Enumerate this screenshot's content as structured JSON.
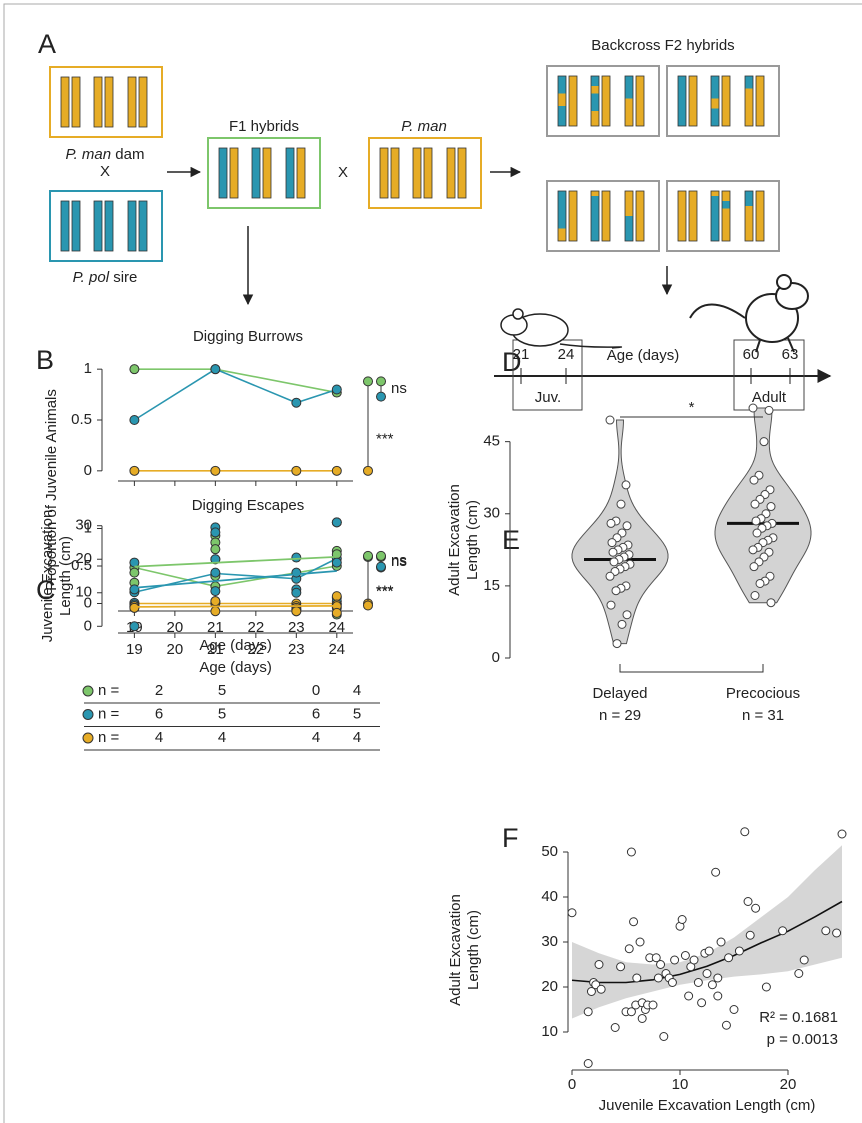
{
  "panel_labels": [
    "A",
    "B",
    "C",
    "D",
    "E",
    "F"
  ],
  "diagram": {
    "dam": {
      "species": "P. man",
      "role": "dam"
    },
    "cross_1": "X",
    "sire": {
      "species": "P. pol",
      "role": "sire"
    },
    "f1": "F1 hybrids",
    "cross_2": "X",
    "backcross_parent": "P. man",
    "f2": "Backcross F2 hybrids"
  },
  "timeline": {
    "ticks": [
      "21",
      "24",
      "60",
      "63"
    ],
    "label": "Age (days)",
    "stages": [
      "Juv.",
      "Adult"
    ]
  },
  "chart_data": [
    {
      "type": "line",
      "title": "Digging Burrows",
      "ylabel": "Proportion of Juvenile Animals",
      "xlim": [
        18.2,
        24.4
      ],
      "ylim": [
        -0.1,
        1.1
      ],
      "yticks": [
        0,
        0.5,
        1
      ],
      "series": [
        {
          "color": "#7dc66b",
          "x": [
            19,
            21,
            24
          ],
          "values": [
            1,
            1,
            0.77
          ],
          "summary": 0.88
        },
        {
          "color": "#2a96b0",
          "x": [
            19,
            21,
            23,
            24
          ],
          "values": [
            0.5,
            1,
            0.67,
            0.8
          ],
          "summary": 0.73
        },
        {
          "color": "#e6ac26",
          "x": [
            19,
            21,
            23,
            24
          ],
          "values": [
            0,
            0,
            0,
            0
          ],
          "summary": 0
        }
      ],
      "annotations": [
        "ns",
        "***"
      ]
    },
    {
      "type": "line",
      "title": "Digging Escapes",
      "xlabel": "Age (days)",
      "xlim": [
        18.2,
        24.4
      ],
      "ylim": [
        -0.1,
        1.1
      ],
      "xticks": [
        19,
        20,
        21,
        22,
        23,
        24
      ],
      "yticks": [
        0,
        0.5,
        1
      ],
      "series": [
        {
          "color": "#7dc66b",
          "x": [
            19,
            21,
            24
          ],
          "values": [
            0.48,
            0.23,
            0.5
          ],
          "summary": 0.62
        },
        {
          "color": "#2a96b0",
          "x": [
            19,
            21,
            23,
            24
          ],
          "values": [
            0.15,
            0.4,
            0.33,
            0.6
          ],
          "summary": 0.48
        },
        {
          "color": "#e6ac26",
          "x": [
            19,
            21,
            23,
            24
          ],
          "values": [
            0,
            0,
            0,
            0
          ],
          "summary": 0
        }
      ],
      "annotations": [
        "ns",
        "***"
      ]
    },
    {
      "type": "scatter",
      "xlabel": "Age (days)",
      "ylabel": [
        "Juvenile Excavation",
        "Length (cm)"
      ],
      "xlim": [
        18.2,
        24.4
      ],
      "ylim": [
        -2,
        32
      ],
      "xticks": [
        19,
        20,
        21,
        22,
        23,
        24
      ],
      "yticks": [
        0,
        10,
        20,
        30
      ],
      "trend_x": [
        19,
        24
      ],
      "sample_size_label": "n =",
      "series": [
        {
          "color": "#7dc66b",
          "x": [
            19,
            19,
            21,
            21,
            21,
            21,
            21,
            24,
            24,
            24,
            24
          ],
          "values": [
            16,
            13,
            27,
            25,
            23,
            20,
            15,
            22.5,
            21.5,
            5.5,
            3.5
          ],
          "trend": [
            17.8,
            20.7
          ],
          "summary": 21,
          "n": [
            2,
            5,
            0,
            4
          ]
        },
        {
          "color": "#2a96b0",
          "x": [
            19,
            19,
            19,
            19,
            19,
            19,
            21,
            21,
            21,
            21,
            21,
            23,
            23,
            23,
            23,
            23,
            23,
            24,
            24,
            24,
            24,
            24
          ],
          "values": [
            19,
            11,
            7,
            6.5,
            6,
            0,
            29.5,
            28,
            20,
            16,
            10.5,
            20.5,
            16,
            11,
            10,
            5,
            4.5,
            31,
            31,
            19,
            8.5,
            7.5
          ],
          "trend": [
            11.5,
            16.5
          ],
          "summary": 17.8,
          "n": [
            6,
            5,
            6,
            5
          ]
        },
        {
          "color": "#e6ac26",
          "x": [
            19,
            19,
            19,
            19,
            21,
            21,
            21,
            21,
            23,
            23,
            23,
            23,
            24,
            24,
            24,
            24
          ],
          "values": [
            6,
            6,
            5.5,
            5.5,
            7.5,
            7,
            7.5,
            4.5,
            6,
            5.5,
            5,
            4.5,
            9,
            6.5,
            6,
            4
          ],
          "trend": [
            5.8,
            6.1
          ],
          "summary": 6.2,
          "n": [
            4,
            4,
            4,
            4
          ]
        }
      ],
      "annotations": [
        "ns",
        "***"
      ]
    },
    {
      "type": "violin",
      "ylabel": [
        "Adult Excavation",
        "Length (cm)"
      ],
      "ylim": [
        0,
        52
      ],
      "yticks": [
        0,
        15,
        30,
        45
      ],
      "color": "#d3d3d3",
      "annotation": "*",
      "groups": [
        {
          "name": "Delayed",
          "note": "n = 29",
          "median": 20.5,
          "values": [
            49.5,
            36,
            32,
            28.5,
            28,
            27.5,
            26,
            25,
            24,
            23.5,
            23,
            22.5,
            22,
            21.5,
            21,
            20.5,
            20,
            19.5,
            19,
            18.5,
            18,
            17,
            15,
            14.5,
            14,
            11,
            9,
            7,
            3
          ]
        },
        {
          "name": "Precocious",
          "note": "n = 31",
          "median": 28,
          "values": [
            52,
            51.5,
            45,
            38,
            37,
            35,
            34,
            33,
            32,
            31.5,
            30,
            29,
            28.5,
            28,
            27.5,
            27,
            26,
            25,
            24.5,
            24,
            23,
            22.5,
            22,
            21,
            20,
            19,
            17,
            16,
            15.5,
            13,
            11.5
          ]
        }
      ]
    },
    {
      "type": "scatter",
      "xlabel": "Juvenile Excavation Length (cm)",
      "ylabel": [
        "Adult Excavation",
        "Length (cm)"
      ],
      "xlim": [
        0,
        25
      ],
      "ylim": [
        2,
        56
      ],
      "xticks": [
        0,
        10,
        20
      ],
      "yticks": [
        10,
        20,
        30,
        40,
        50
      ],
      "x": [
        0,
        1.5,
        1.5,
        1.8,
        2,
        2.2,
        2.5,
        2.7,
        4,
        4.5,
        5,
        5.3,
        5.5,
        5.5,
        5.7,
        5.9,
        6,
        6.3,
        6.5,
        6.5,
        6.8,
        7,
        7.2,
        7.5,
        7.8,
        8,
        8.2,
        8.5,
        8.7,
        9,
        9.3,
        9.5,
        10,
        10.2,
        10.5,
        10.8,
        11,
        11.3,
        11.7,
        12,
        12.3,
        12.5,
        12.7,
        13,
        13.3,
        13.5,
        13.5,
        13.8,
        14.3,
        14.5,
        15,
        15.5,
        16,
        16.3,
        16.5,
        17,
        18,
        19.5,
        21,
        21.5,
        23.5,
        24.5,
        25
      ],
      "values": [
        36.5,
        14.5,
        3,
        19,
        21,
        20.5,
        25,
        19.5,
        11,
        24.5,
        14.5,
        28.5,
        14.5,
        50,
        34.5,
        16,
        22,
        30,
        13,
        16.5,
        15,
        16,
        26.5,
        16,
        26.5,
        22,
        25,
        9,
        23,
        22,
        21,
        26,
        33.5,
        35,
        27,
        18,
        24.5,
        26,
        21,
        16.5,
        27.5,
        23,
        28,
        20.5,
        45.5,
        18,
        22,
        30,
        11.5,
        26.5,
        15,
        28,
        54.5,
        39,
        31.5,
        37.5,
        20,
        32.5,
        23,
        26,
        32.5,
        32,
        54
      ],
      "fit": {
        "x": [
          0,
          2.5,
          5,
          7.5,
          10,
          12.5,
          15,
          17.5,
          20,
          22.5,
          25
        ],
        "values": [
          21.5,
          21,
          21,
          21.6,
          22.8,
          24.6,
          27,
          29.8,
          32.4,
          35.6,
          39
        ],
        "lower": [
          13,
          15.5,
          17.5,
          19,
          20.5,
          21.5,
          22.3,
          22.8,
          23.5,
          25,
          26.5
        ],
        "upper": [
          30,
          27.5,
          25.5,
          25,
          25.5,
          27.5,
          31,
          35.5,
          40,
          46,
          51.5
        ]
      },
      "annotations": [
        "R² = 0.1681",
        "p = 0.0013"
      ]
    }
  ]
}
